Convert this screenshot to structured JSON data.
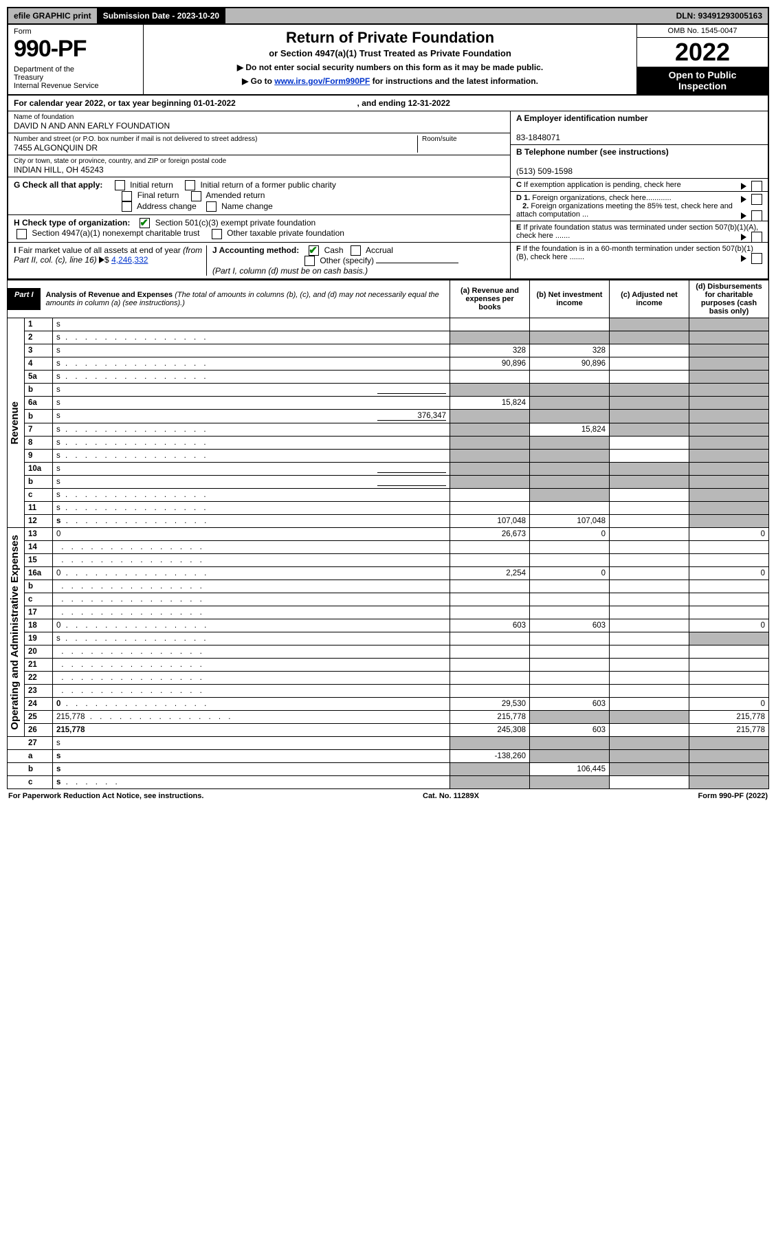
{
  "topbar": {
    "efile": "efile GRAPHIC print",
    "subdate_label": "Submission Date - 2023-10-20",
    "dln": "DLN: 93491293005163"
  },
  "header": {
    "form_label": "Form",
    "form_num": "990-PF",
    "dept": "Department of the Treasury\nInternal Revenue Service",
    "title": "Return of Private Foundation",
    "subtitle": "or Section 4947(a)(1) Trust Treated as Private Foundation",
    "note1": "▶ Do not enter social security numbers on this form as it may be made public.",
    "note2_pre": "▶ Go to ",
    "note2_link": "www.irs.gov/Form990PF",
    "note2_post": " for instructions and the latest information.",
    "omb": "OMB No. 1545-0047",
    "year": "2022",
    "open": "Open to Public Inspection"
  },
  "cal_year": {
    "prefix": "For calendar year 2022, or tax year beginning ",
    "begin": "01-01-2022",
    "mid": " , and ending ",
    "end": "12-31-2022"
  },
  "foundation": {
    "name_label": "Name of foundation",
    "name": "DAVID N AND ANN EARLY FOUNDATION",
    "addr_label": "Number and street (or P.O. box number if mail is not delivered to street address)",
    "addr": "7455 ALGONQUIN DR",
    "room_label": "Room/suite",
    "city_label": "City or town, state or province, country, and ZIP or foreign postal code",
    "city": "INDIAN HILL, OH  45243",
    "ein_label": "A Employer identification number",
    "ein": "83-1848071",
    "phone_label": "B Telephone number (see instructions)",
    "phone": "(513) 509-1598",
    "c_label": "C If exemption application is pending, check here"
  },
  "checks": {
    "g_label": "G Check all that apply:",
    "g_opts": [
      "Initial return",
      "Initial return of a former public charity",
      "Final return",
      "Amended return",
      "Address change",
      "Name change"
    ],
    "h_label": "H Check type of organization:",
    "h_opt1": "Section 501(c)(3) exempt private foundation",
    "h_opt2": "Section 4947(a)(1) nonexempt charitable trust",
    "h_opt3": "Other taxable private foundation",
    "i_label": "I Fair market value of all assets at end of year (from Part II, col. (c), line 16)",
    "i_val": "4,246,332",
    "j_label": "J Accounting method:",
    "j_opts": [
      "Cash",
      "Accrual",
      "Other (specify)"
    ],
    "j_note": "(Part I, column (d) must be on cash basis.)",
    "d1": "D 1. Foreign organizations, check here............",
    "d2": "2. Foreign organizations meeting the 85% test, check here and attach computation ...",
    "e_label": "E If private foundation status was terminated under section 507(b)(1)(A), check here .......",
    "f_label": "F If the foundation is in a 60-month termination under section 507(b)(1)(B), check here ......."
  },
  "part1": {
    "title": "Part I",
    "analysis_title": "Analysis of Revenue and Expenses",
    "analysis_sub": "(The total of amounts in columns (b), (c), and (d) may not necessarily equal the amounts in column (a) (see instructions).)",
    "col_a": "(a) Revenue and expenses per books",
    "col_b": "(b) Net investment income",
    "col_c": "(c) Adjusted net income",
    "col_d": "(d) Disbursements for charitable purposes (cash basis only)"
  },
  "vlabels": {
    "revenue": "Revenue",
    "expenses": "Operating and Administrative Expenses"
  },
  "revenue_rows": [
    {
      "n": "1",
      "d": "s",
      "a": "",
      "b": "",
      "c": "s",
      "dots": false
    },
    {
      "n": "2",
      "d": "s",
      "a": "s",
      "b": "s",
      "c": "s",
      "dots": true
    },
    {
      "n": "3",
      "d": "s",
      "a": "328",
      "b": "328",
      "c": "",
      "dots": false
    },
    {
      "n": "4",
      "d": "s",
      "a": "90,896",
      "b": "90,896",
      "c": "",
      "dots": true
    },
    {
      "n": "5a",
      "d": "s",
      "a": "",
      "b": "",
      "c": "",
      "dots": true
    },
    {
      "n": "b",
      "d": "s",
      "a": "s",
      "b": "s",
      "c": "s",
      "dots": false,
      "inline": true
    },
    {
      "n": "6a",
      "d": "s",
      "a": "15,824",
      "b": "s",
      "c": "s",
      "dots": false
    },
    {
      "n": "b",
      "d": "s",
      "a": "s",
      "b": "s",
      "c": "s",
      "dots": false,
      "inline": true,
      "inline_val": "376,347"
    },
    {
      "n": "7",
      "d": "s",
      "a": "s",
      "b": "15,824",
      "c": "s",
      "dots": true
    },
    {
      "n": "8",
      "d": "s",
      "a": "s",
      "b": "s",
      "c": "",
      "dots": true
    },
    {
      "n": "9",
      "d": "s",
      "a": "s",
      "b": "s",
      "c": "",
      "dots": true
    },
    {
      "n": "10a",
      "d": "s",
      "a": "s",
      "b": "s",
      "c": "s",
      "dots": false,
      "inline": true
    },
    {
      "n": "b",
      "d": "s",
      "a": "s",
      "b": "s",
      "c": "s",
      "dots": true,
      "inline": true
    },
    {
      "n": "c",
      "d": "s",
      "a": "",
      "b": "s",
      "c": "",
      "dots": true
    },
    {
      "n": "11",
      "d": "s",
      "a": "",
      "b": "",
      "c": "",
      "dots": true
    },
    {
      "n": "12",
      "d": "s",
      "a": "107,048",
      "b": "107,048",
      "c": "",
      "dots": true,
      "bold": true
    }
  ],
  "expense_rows": [
    {
      "n": "13",
      "d": "0",
      "a": "26,673",
      "b": "0",
      "c": "",
      "dots": false
    },
    {
      "n": "14",
      "d": "",
      "a": "",
      "b": "",
      "c": "",
      "dots": true
    },
    {
      "n": "15",
      "d": "",
      "a": "",
      "b": "",
      "c": "",
      "dots": true
    },
    {
      "n": "16a",
      "d": "0",
      "a": "2,254",
      "b": "0",
      "c": "",
      "dots": true
    },
    {
      "n": "b",
      "d": "",
      "a": "",
      "b": "",
      "c": "",
      "dots": true
    },
    {
      "n": "c",
      "d": "",
      "a": "",
      "b": "",
      "c": "",
      "dots": true
    },
    {
      "n": "17",
      "d": "",
      "a": "",
      "b": "",
      "c": "",
      "dots": true
    },
    {
      "n": "18",
      "d": "0",
      "a": "603",
      "b": "603",
      "c": "",
      "dots": true
    },
    {
      "n": "19",
      "d": "s",
      "a": "",
      "b": "",
      "c": "",
      "dots": true
    },
    {
      "n": "20",
      "d": "",
      "a": "",
      "b": "",
      "c": "",
      "dots": true
    },
    {
      "n": "21",
      "d": "",
      "a": "",
      "b": "",
      "c": "",
      "dots": true
    },
    {
      "n": "22",
      "d": "",
      "a": "",
      "b": "",
      "c": "",
      "dots": true
    },
    {
      "n": "23",
      "d": "",
      "a": "",
      "b": "",
      "c": "",
      "dots": true
    },
    {
      "n": "24",
      "d": "0",
      "a": "29,530",
      "b": "603",
      "c": "",
      "dots": true,
      "bold": true
    },
    {
      "n": "25",
      "d": "215,778",
      "a": "215,778",
      "b": "s",
      "c": "s",
      "dots": true
    },
    {
      "n": "26",
      "d": "215,778",
      "a": "245,308",
      "b": "603",
      "c": "",
      "dots": false,
      "bold": true
    }
  ],
  "bottom_rows": [
    {
      "n": "27",
      "d": "s",
      "a": "s",
      "b": "s",
      "c": "s"
    },
    {
      "n": "a",
      "d": "s",
      "a": "-138,260",
      "b": "s",
      "c": "s",
      "bold": true
    },
    {
      "n": "b",
      "d": "s",
      "a": "s",
      "b": "106,445",
      "c": "s",
      "bold": true
    },
    {
      "n": "c",
      "d": "s",
      "a": "s",
      "b": "s",
      "c": "",
      "bold": true,
      "dots": true
    }
  ],
  "footer": {
    "left": "For Paperwork Reduction Act Notice, see instructions.",
    "mid": "Cat. No. 11289X",
    "right": "Form 990-PF (2022)"
  },
  "colors": {
    "shade": "#b8b8b8",
    "black": "#000000",
    "link": "#0033cc",
    "check": "#008000"
  }
}
